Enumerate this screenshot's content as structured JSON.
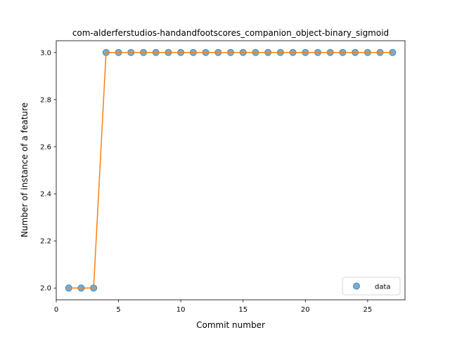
{
  "chart_data": {
    "type": "line",
    "title": "com-alderferstudios-handandfootscores_companion_object-binary_sigmoid",
    "xlabel": "Commit number",
    "ylabel": "Number of instance of a feature",
    "xlim": [
      0,
      28
    ],
    "ylim": [
      1.95,
      3.05
    ],
    "xticks": [
      0,
      5,
      10,
      15,
      20,
      25
    ],
    "yticks": [
      2.0,
      2.2,
      2.4,
      2.6,
      2.8,
      3.0
    ],
    "grid": false,
    "legend": {
      "placement": "lower-right",
      "entries": [
        "data"
      ]
    },
    "series": [
      {
        "name": "data",
        "style": "markers",
        "color": "#1f77b4",
        "x": [
          1,
          2,
          3,
          4,
          5,
          6,
          7,
          8,
          9,
          10,
          11,
          12,
          13,
          14,
          15,
          16,
          17,
          18,
          19,
          20,
          21,
          22,
          23,
          24,
          25,
          26,
          27
        ],
        "values": [
          2,
          2,
          2,
          3,
          3,
          3,
          3,
          3,
          3,
          3,
          3,
          3,
          3,
          3,
          3,
          3,
          3,
          3,
          3,
          3,
          3,
          3,
          3,
          3,
          3,
          3,
          3
        ]
      },
      {
        "style": "line",
        "color": "#ff7f0e",
        "x": [
          1,
          2,
          3,
          4,
          5,
          6,
          7,
          8,
          9,
          10,
          11,
          12,
          13,
          14,
          15,
          16,
          17,
          18,
          19,
          20,
          21,
          22,
          23,
          24,
          25,
          26,
          27
        ],
        "values": [
          2,
          2,
          2,
          3,
          3,
          3,
          3,
          3,
          3,
          3,
          3,
          3,
          3,
          3,
          3,
          3,
          3,
          3,
          3,
          3,
          3,
          3,
          3,
          3,
          3,
          3,
          3
        ]
      }
    ]
  }
}
